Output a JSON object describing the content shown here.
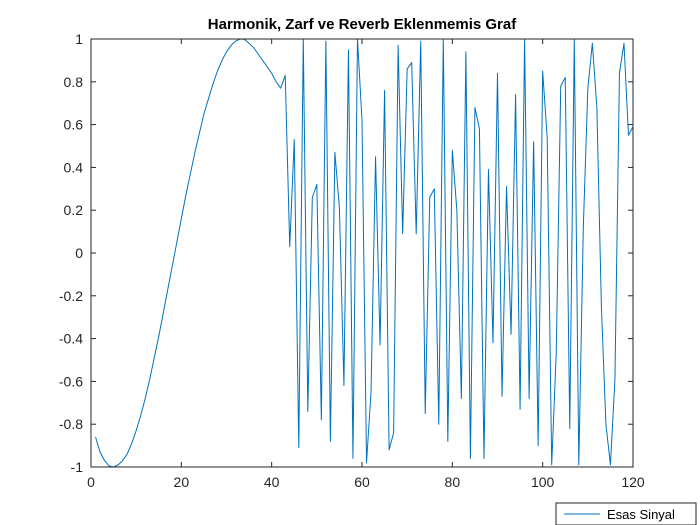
{
  "chart_data": {
    "type": "line",
    "title": "Harmonik, Zarf ve Reverb Eklenmemis Graf",
    "xlabel": "",
    "ylabel": "",
    "xlim": [
      0,
      120
    ],
    "ylim": [
      -1,
      1
    ],
    "x_ticks": [
      "0",
      "20",
      "40",
      "60",
      "80",
      "100",
      "120"
    ],
    "y_ticks": [
      "-1",
      "-0.8",
      "-0.6",
      "-0.4",
      "-0.2",
      "0",
      "0.2",
      "0.4",
      "0.6",
      "0.8",
      "1"
    ],
    "grid": false,
    "legend_position": "bottom-right",
    "series": [
      {
        "name": "Esas Sinyal",
        "color": "#0072BD",
        "x": [
          1,
          2,
          3,
          4,
          5,
          6,
          7,
          8,
          9,
          10,
          11,
          12,
          13,
          14,
          15,
          16,
          17,
          18,
          19,
          20,
          21,
          22,
          23,
          24,
          25,
          26,
          27,
          28,
          29,
          30,
          31,
          32,
          33,
          34,
          35,
          36,
          37,
          38,
          39,
          40,
          41,
          42,
          43,
          44,
          45,
          46,
          47,
          48,
          49,
          50,
          51,
          52,
          53,
          54,
          55,
          56,
          57,
          58,
          59,
          60,
          61,
          62,
          63,
          64,
          65,
          66,
          67,
          68,
          69,
          70,
          71,
          72,
          73,
          74,
          75,
          76,
          77,
          78,
          79,
          80,
          81,
          82,
          83,
          84,
          85,
          86,
          87,
          88,
          89,
          90,
          91,
          92,
          93,
          94,
          95,
          96,
          97,
          98,
          99,
          100,
          101,
          102,
          103,
          104,
          105,
          106,
          107,
          108,
          109,
          110,
          111,
          112,
          113,
          114,
          115,
          116,
          117,
          118,
          119,
          120
        ],
        "y": [
          -0.86,
          -0.93,
          -0.97,
          -0.995,
          -1.0,
          -0.99,
          -0.97,
          -0.94,
          -0.89,
          -0.83,
          -0.76,
          -0.68,
          -0.59,
          -0.49,
          -0.39,
          -0.28,
          -0.17,
          -0.06,
          0.05,
          0.16,
          0.27,
          0.37,
          0.47,
          0.56,
          0.65,
          0.72,
          0.79,
          0.85,
          0.9,
          0.94,
          0.97,
          0.99,
          1.0,
          0.998,
          0.98,
          0.96,
          0.93,
          0.9,
          0.87,
          0.84,
          0.8,
          0.77,
          0.83,
          0.03,
          0.53,
          -0.91,
          1.0,
          -0.74,
          0.26,
          0.32,
          -0.78,
          0.99,
          -0.88,
          0.47,
          0.21,
          -0.62,
          0.95,
          -0.96,
          1.0,
          0.62,
          -0.98,
          -0.65,
          0.45,
          -0.43,
          0.76,
          -0.92,
          -0.84,
          0.97,
          0.09,
          0.86,
          0.89,
          0.09,
          0.99,
          -0.75,
          0.26,
          0.3,
          -0.8,
          1.0,
          -0.88,
          0.48,
          0.2,
          -0.68,
          0.94,
          -0.96,
          0.68,
          0.58,
          -0.96,
          0.39,
          -0.42,
          0.84,
          -0.67,
          0.31,
          -0.38,
          0.74,
          -0.73,
          1.0,
          -0.68,
          0.52,
          -0.9,
          0.85,
          0.54,
          -0.99,
          -0.47,
          0.78,
          0.82,
          -0.82,
          1.0,
          -0.99,
          0.12,
          0.77,
          0.98,
          0.68,
          -0.25,
          -0.8,
          -0.99,
          -0.59,
          0.84,
          0.98,
          0.55,
          0.59
        ]
      }
    ]
  }
}
